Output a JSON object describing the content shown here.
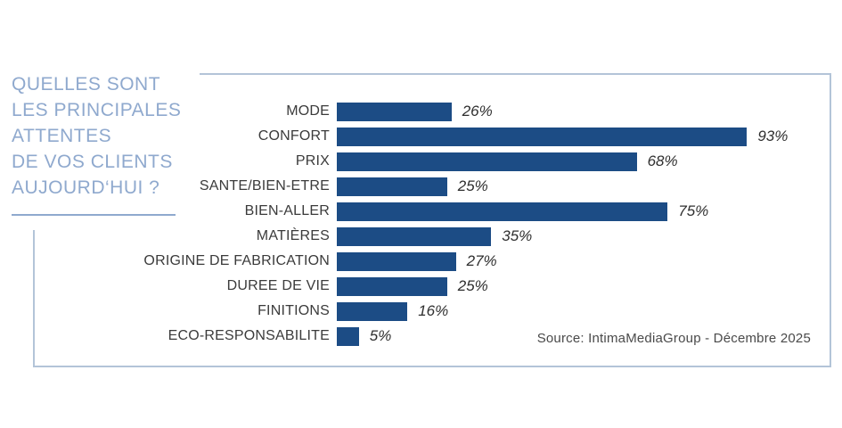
{
  "title": {
    "lines": [
      "QUELLES SONT",
      "LES PRINCIPALES",
      "ATTENTES",
      "DE VOS CLIENTS",
      "AUJOURD‘HUI ?"
    ]
  },
  "source": {
    "text": "Source: IntimaMediaGroup - Décembre 2025"
  },
  "colors": {
    "bar": "#1C4C85",
    "title": "#8FA9CE",
    "frame": "#B3C4D8",
    "label": "#3B3B3B",
    "value": "#2F2F2F",
    "source": "#4A4A4A"
  },
  "chart_data": {
    "type": "bar",
    "orientation": "horizontal",
    "title": "QUELLES SONT LES PRINCIPALES ATTENTES DE VOS CLIENTS AUJOURD‘HUI ?",
    "categories": [
      "MODE",
      "CONFORT",
      "PRIX",
      "SANTE/BIEN-ETRE",
      "BIEN-ALLER",
      "MATIÈRES",
      "ORIGINE DE FABRICATION",
      "DUREE DE VIE",
      "FINITIONS",
      "ECO-RESPONSABILITE"
    ],
    "values": [
      26,
      93,
      68,
      25,
      75,
      35,
      27,
      25,
      16,
      5
    ],
    "value_labels": [
      "26%",
      "93%",
      "68%",
      "25%",
      "75%",
      "35%",
      "27%",
      "25%",
      "16%",
      "5%"
    ],
    "xlabel": "",
    "ylabel": "",
    "xlim": [
      0,
      100
    ],
    "grid": false,
    "legend": false,
    "bar_color": "#1C4C85",
    "value_label_style": "italic"
  }
}
